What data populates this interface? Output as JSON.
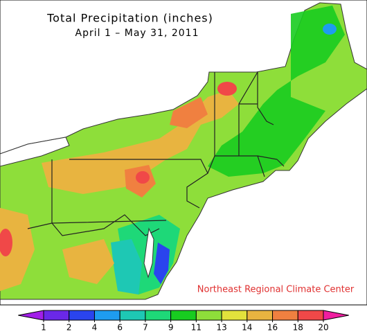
{
  "title": "Total Precipitation (inches)",
  "subtitle": "April 1 – May 31, 2011",
  "credit": "Northeast Regional Climate Center",
  "legend": {
    "ticks": [
      1,
      2,
      4,
      6,
      7,
      9,
      11,
      13,
      14,
      16,
      18,
      20
    ],
    "colors": [
      "#a21ee8",
      "#6a28e8",
      "#2a44ee",
      "#1e9cf0",
      "#1ec8b4",
      "#1ed878",
      "#18cc20",
      "#8ede3a",
      "#e2e23c",
      "#e8b440",
      "#f08040",
      "#f04848",
      "#f01ea0"
    ]
  }
}
